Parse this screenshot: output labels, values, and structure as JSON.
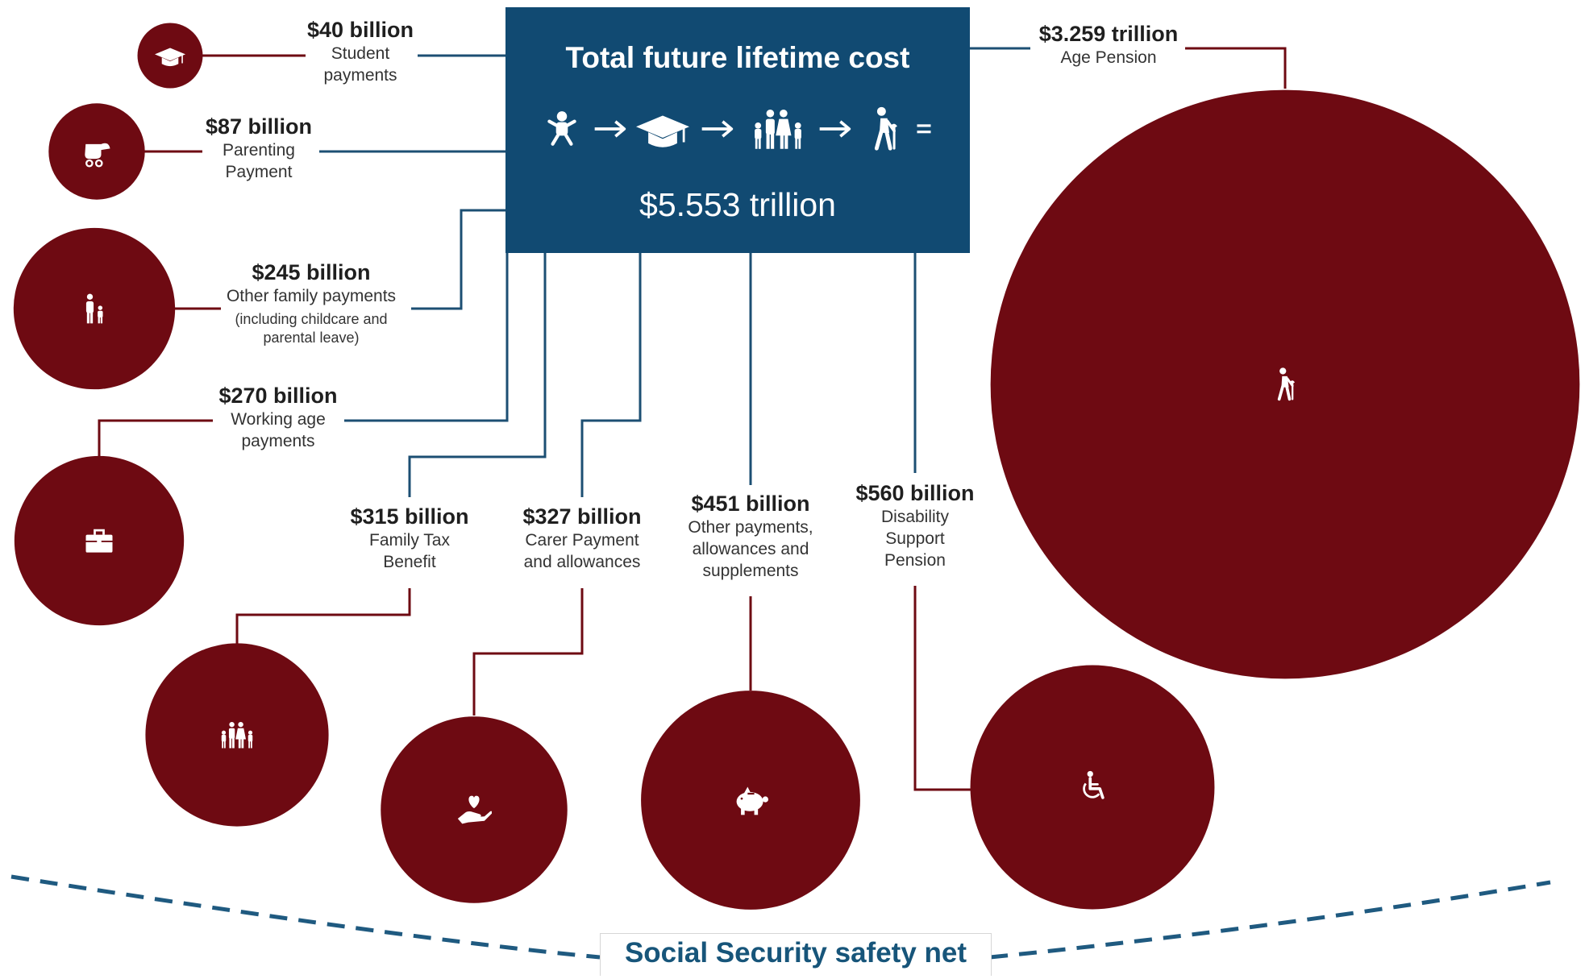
{
  "colors": {
    "bubble": "#6e0a12",
    "box": "#114a72",
    "box_connector": "#1c4f73",
    "bubble_connector": "#6e0a12",
    "net": "#1f5a80"
  },
  "header": {
    "title": "Total future lifetime cost",
    "flow_icons": [
      "child-icon",
      "arrow-right-icon",
      "graduation-cap-icon",
      "arrow-right-icon",
      "family-icon",
      "arrow-right-icon",
      "elderly-person-icon",
      "equals-icon"
    ],
    "total": "$5.553 trillion"
  },
  "footer": {
    "label": "Social Security safety net"
  },
  "chart_data": {
    "type": "bubble",
    "title": "Total future lifetime cost",
    "total": {
      "value": 5.553,
      "unit": "trillion",
      "label": "$5.553 trillion"
    },
    "items": [
      {
        "label": "$40 billion",
        "name": "Student payments",
        "value_billion": 40,
        "icon": "graduation-cap-icon"
      },
      {
        "label": "$87 billion",
        "name": "Parenting Payment",
        "value_billion": 87,
        "icon": "pram-icon"
      },
      {
        "label": "$245 billion",
        "name": "Other family payments",
        "note": "(including childcare and parental leave)",
        "value_billion": 245,
        "icon": "parent-child-icon"
      },
      {
        "label": "$270 billion",
        "name": "Working age payments",
        "value_billion": 270,
        "icon": "briefcase-icon"
      },
      {
        "label": "$315 billion",
        "name": "Family Tax Benefit",
        "value_billion": 315,
        "icon": "family-icon"
      },
      {
        "label": "$327 billion",
        "name": "Carer Payment and allowances",
        "value_billion": 327,
        "icon": "hand-heart-icon"
      },
      {
        "label": "$451 billion",
        "name": "Other payments, allowances and supplements",
        "value_billion": 451,
        "icon": "piggy-bank-icon"
      },
      {
        "label": "$560 billion",
        "name": "Disability Support Pension",
        "value_billion": 560,
        "icon": "wheelchair-icon"
      },
      {
        "label": "$3.259 trillion",
        "name": "Age Pension",
        "value_billion": 3259,
        "icon": "elderly-person-icon"
      }
    ]
  }
}
